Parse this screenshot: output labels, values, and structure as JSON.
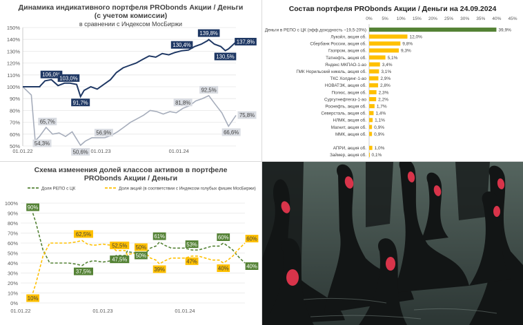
{
  "panel1": {
    "title_line1": "Динамика индикативного портфеля PRObonds Акции / Деньги",
    "title_line2": "(с учетом комиссии)",
    "subtitle": "в сравнении с Индексом МосБиржи"
  },
  "panel2": {
    "title": "Состав портфеля PRObonds Акции / Деньги на 24.09.2024"
  },
  "panel3": {
    "title_line1": "Схема изменения долей классов активов в портфеле",
    "title_line2": "PRObonds Акции / Деньги"
  },
  "photo": {
    "subject": "black-swans-photo"
  },
  "chart_data": [
    {
      "type": "line",
      "x_ticks": [
        "01.01.22",
        "01.01.23",
        "01.01.24"
      ],
      "y_ticks": [
        "50%",
        "60%",
        "70%",
        "80%",
        "90%",
        "100%",
        "110%",
        "120%",
        "130%",
        "140%",
        "150%"
      ],
      "ylim": [
        50,
        150
      ],
      "colors": {
        "portfolio": "#1f3864",
        "index": "#a6adbb"
      },
      "series": [
        {
          "x": [
            "2022-01-01",
            "2022-02-15",
            "2022-03-20",
            "2022-04-15",
            "2022-05-15",
            "2022-06-15",
            "2022-07-15",
            "2022-08-10",
            "2022-09-10",
            "2022-09-28",
            "2022-10-15",
            "2022-11-15",
            "2022-12-15",
            "2023-01-15",
            "2023-02-15",
            "2023-03-15",
            "2023-04-15",
            "2023-05-15",
            "2023-06-15",
            "2023-07-15",
            "2023-08-15",
            "2023-09-15",
            "2023-10-15",
            "2023-11-15",
            "2023-12-15",
            "2024-01-15",
            "2024-02-15",
            "2024-03-15",
            "2024-04-15",
            "2024-05-15",
            "2024-05-20",
            "2024-06-15",
            "2024-07-15",
            "2024-08-05",
            "2024-08-20",
            "2024-09-24"
          ],
          "values": [
            100,
            100,
            100,
            105,
            106,
            101,
            103,
            103,
            102,
            91.7,
            97,
            100,
            98,
            102,
            106,
            112,
            116,
            118,
            120,
            123,
            126,
            125,
            128,
            127,
            129,
            130.4,
            131,
            134,
            136,
            139,
            139.8,
            136,
            134,
            130.5,
            132,
            137.8
          ]
        },
        {
          "x": [
            "2022-01-01",
            "2022-02-10",
            "2022-02-28",
            "2022-03-20",
            "2022-04-20",
            "2022-05-20",
            "2022-06-20",
            "2022-07-20",
            "2022-08-20",
            "2022-09-28",
            "2022-10-20",
            "2022-11-20",
            "2022-12-20",
            "2023-01-20",
            "2023-02-20",
            "2023-03-20",
            "2023-04-20",
            "2023-05-20",
            "2023-06-20",
            "2023-07-20",
            "2023-08-20",
            "2023-09-20",
            "2023-10-20",
            "2023-11-20",
            "2023-12-20",
            "2024-01-20",
            "2024-02-20",
            "2024-03-20",
            "2024-04-20",
            "2024-05-20",
            "2024-06-20",
            "2024-07-20",
            "2024-08-20",
            "2024-09-24"
          ],
          "values": [
            100,
            93,
            54.3,
            58,
            65.7,
            60,
            61,
            58,
            62,
            50.6,
            54,
            57,
            56.9,
            57,
            59,
            62,
            66,
            70,
            73,
            76,
            80,
            79,
            77,
            79,
            78,
            81.8,
            84,
            88,
            90,
            92.5,
            85,
            78,
            66.6,
            75.8
          ]
        }
      ],
      "data_labels": [
        {
          "series": 0,
          "x": "2022-05-15",
          "text": "106,0%"
        },
        {
          "series": 0,
          "x": "2022-07-15",
          "text": "103,0%"
        },
        {
          "series": 0,
          "x": "2022-09-28",
          "text": "91,7%"
        },
        {
          "series": 0,
          "x": "2024-01-15",
          "text": "130,4%"
        },
        {
          "series": 0,
          "x": "2024-05-20",
          "text": "139,8%"
        },
        {
          "series": 0,
          "x": "2024-08-05",
          "text": "130,5%"
        },
        {
          "series": 0,
          "x": "2024-09-24",
          "text": "137,8%"
        },
        {
          "series": 1,
          "x": "2022-02-28",
          "text": "54,3%"
        },
        {
          "series": 1,
          "x": "2022-04-20",
          "text": "65,7%"
        },
        {
          "series": 1,
          "x": "2022-09-28",
          "text": "50,6%"
        },
        {
          "series": 1,
          "x": "2022-12-20",
          "text": "56,9%"
        },
        {
          "series": 1,
          "x": "2024-01-20",
          "text": "81,8%"
        },
        {
          "series": 1,
          "x": "2024-05-20",
          "text": "92,5%"
        },
        {
          "series": 1,
          "x": "2024-08-20",
          "text": "66,6%"
        },
        {
          "series": 1,
          "x": "2024-09-24",
          "text": "75,8%"
        }
      ]
    },
    {
      "type": "bar",
      "orientation": "horizontal",
      "x_ticks": [
        "0%",
        "5%",
        "10%",
        "15%",
        "20%",
        "25%",
        "30%",
        "35%",
        "40%",
        "45%"
      ],
      "xlim": [
        0,
        45
      ],
      "colors": {
        "top_bar": "#548235",
        "bars": "#ffc000"
      },
      "categories": [
        "Деньги в РЕПО с ЦК (эфф.доходность ~19,5-20%)",
        "Лукойл, акция об.",
        "Сбербанк России, акция об.",
        "Газпром, акция об.",
        "Татнефть, акция об.",
        "Яндекс МКПАО-1-ао",
        "ГМК Норильский никель, акция об.",
        "ТКС Холдинг-1-ао",
        "НОВАТЭК, акция об.",
        "Полюс, акция об.",
        "Сургутнефтегаз-1-ао",
        "Роснефть, акция об.",
        "Северсталь, акция об.",
        "НЛМК, акция об.",
        "Магнит, акция об.",
        "ММК, акция об.",
        "",
        "АПРИ, акция об.",
        "Займер, акция об."
      ],
      "values": [
        39.9,
        12.0,
        9.8,
        9.3,
        5.1,
        3.4,
        3.1,
        2.9,
        2.8,
        2.3,
        2.2,
        1.7,
        1.4,
        1.1,
        0.9,
        0.9,
        null,
        1.0,
        0.1
      ],
      "value_labels": [
        "39,9%",
        "12,0%",
        "9,8%",
        "9,3%",
        "5,1%",
        "3,4%",
        "3,1%",
        "2,9%",
        "2,8%",
        "2,3%",
        "2,2%",
        "1,7%",
        "1,4%",
        "1,1%",
        "0,9%",
        "0,9%",
        "",
        "1,0%",
        "0,1%"
      ]
    },
    {
      "type": "line",
      "x_ticks": [
        "01.01.22",
        "01.01.23",
        "01.01.24"
      ],
      "y_ticks": [
        "0%",
        "10%",
        "20%",
        "30%",
        "40%",
        "50%",
        "60%",
        "70%",
        "80%",
        "90%",
        "100%"
      ],
      "ylim": [
        0,
        100
      ],
      "colors": {
        "repo": "#548235",
        "stocks": "#ffc000"
      },
      "series": [
        {
          "name": "Доля РЕПО  с ЦК",
          "x": [
            "2022-02-24",
            "2022-03-10",
            "2022-04-10",
            "2022-05-10",
            "2022-07-01",
            "2022-08-01",
            "2022-09-01",
            "2022-10-01",
            "2022-10-25",
            "2022-11-15",
            "2022-12-01",
            "2023-01-01",
            "2023-02-01",
            "2023-02-20",
            "2023-03-01",
            "2023-04-10",
            "2023-04-20",
            "2023-05-01",
            "2023-06-01",
            "2023-06-20",
            "2023-07-15",
            "2023-08-01",
            "2023-08-25",
            "2023-09-10",
            "2023-10-01",
            "2023-11-01",
            "2023-12-01",
            "2024-01-01",
            "2024-02-01",
            "2024-03-01",
            "2024-04-01",
            "2024-05-01",
            "2024-06-01",
            "2024-06-20",
            "2024-07-10",
            "2024-08-01",
            "2024-08-15",
            "2024-09-01",
            "2024-09-24"
          ],
          "values": [
            90,
            80,
            53,
            40,
            40,
            40,
            39,
            37.5,
            41,
            42,
            42,
            41,
            42,
            46,
            47.5,
            47.5,
            52,
            51,
            50,
            50,
            51,
            55,
            57,
            61,
            58,
            55,
            55,
            55,
            53,
            53,
            55,
            57,
            57,
            60,
            57,
            53,
            49,
            45,
            40
          ]
        },
        {
          "name": "Доля акций (в соответствии с Индексом голубых фишек МосБиржи)",
          "x": [
            "2022-02-24",
            "2022-03-10",
            "2022-04-10",
            "2022-05-10",
            "2022-07-01",
            "2022-08-01",
            "2022-09-01",
            "2022-10-01",
            "2022-10-25",
            "2022-11-15",
            "2022-12-01",
            "2023-01-01",
            "2023-02-01",
            "2023-02-20",
            "2023-03-01",
            "2023-04-10",
            "2023-04-20",
            "2023-05-01",
            "2023-06-01",
            "2023-06-20",
            "2023-07-15",
            "2023-08-01",
            "2023-08-25",
            "2023-09-10",
            "2023-10-01",
            "2023-11-01",
            "2023-12-01",
            "2024-01-01",
            "2024-02-01",
            "2024-03-01",
            "2024-04-01",
            "2024-05-01",
            "2024-06-01",
            "2024-06-20",
            "2024-07-10",
            "2024-08-01",
            "2024-08-15",
            "2024-09-01",
            "2024-09-24"
          ],
          "values": [
            10,
            20,
            47,
            60,
            60,
            60,
            61,
            62.5,
            59,
            58,
            58,
            59,
            58,
            54,
            52.5,
            52.5,
            48,
            49,
            50,
            50,
            49,
            45,
            43,
            39,
            42,
            45,
            45,
            45,
            47,
            47,
            45,
            43,
            43,
            40,
            43,
            47,
            51,
            55,
            60
          ]
        }
      ],
      "data_labels": [
        {
          "series": 0,
          "x": "2022-02-24",
          "text": "90%"
        },
        {
          "series": 0,
          "x": "2022-10-01",
          "text": "37,5%"
        },
        {
          "series": 0,
          "x": "2023-04-10",
          "text": "47,5%"
        },
        {
          "series": 0,
          "x": "2023-06-20",
          "text": "50%"
        },
        {
          "series": 0,
          "x": "2023-09-10",
          "text": "61%"
        },
        {
          "series": 0,
          "x": "2024-02-01",
          "text": "53%"
        },
        {
          "series": 0,
          "x": "2024-06-20",
          "text": "60%"
        },
        {
          "series": 0,
          "x": "2024-09-24",
          "text": "40%"
        },
        {
          "series": 1,
          "x": "2022-02-24",
          "text": "10%"
        },
        {
          "series": 1,
          "x": "2022-10-01",
          "text": "62,5%"
        },
        {
          "series": 1,
          "x": "2023-04-10",
          "text": "52,5%"
        },
        {
          "series": 1,
          "x": "2023-06-20",
          "text": "50%"
        },
        {
          "series": 1,
          "x": "2023-09-10",
          "text": "39%"
        },
        {
          "series": 1,
          "x": "2024-02-01",
          "text": "47%"
        },
        {
          "series": 1,
          "x": "2024-06-20",
          "text": "40%"
        },
        {
          "series": 1,
          "x": "2024-09-24",
          "text": "60%"
        }
      ]
    }
  ]
}
